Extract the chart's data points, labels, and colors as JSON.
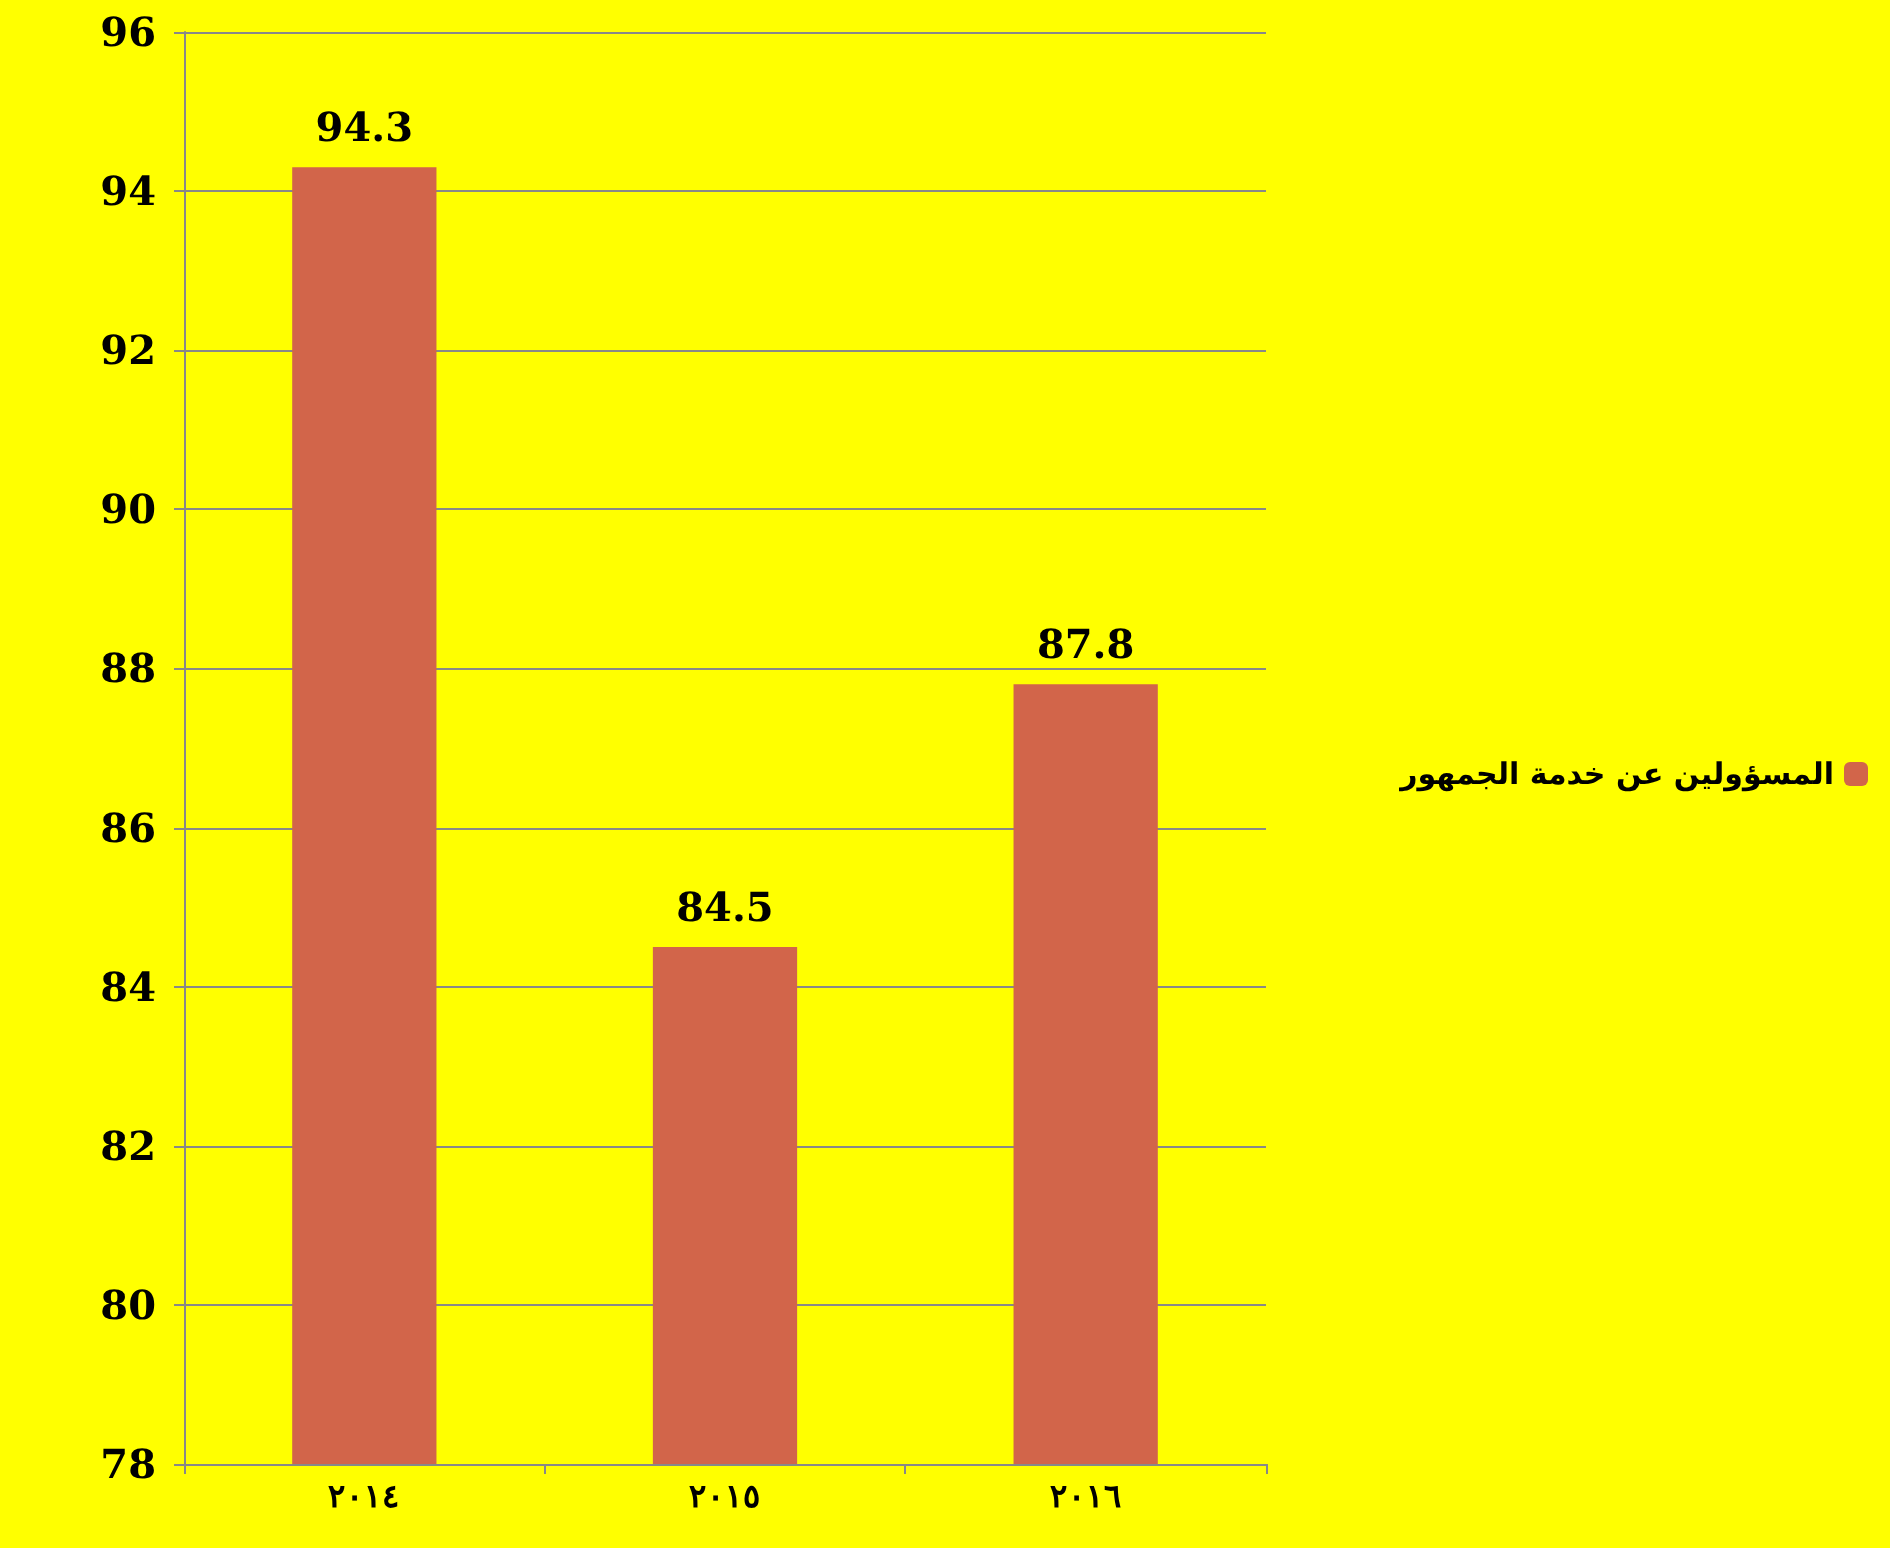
{
  "chart_data": {
    "type": "bar",
    "categories": [
      "٢٠١٤",
      "٢٠١٥",
      "٢٠١٦"
    ],
    "series": [
      {
        "name": "المسؤولين عن خدمة الجمهور",
        "color": "#d2654a",
        "values": [
          94.3,
          84.5,
          87.8
        ]
      }
    ],
    "ylim": [
      78,
      96
    ],
    "yticks": [
      78,
      80,
      82,
      84,
      86,
      88,
      90,
      92,
      94,
      96
    ],
    "grid": "y",
    "legend": "right",
    "data_labels": true
  }
}
